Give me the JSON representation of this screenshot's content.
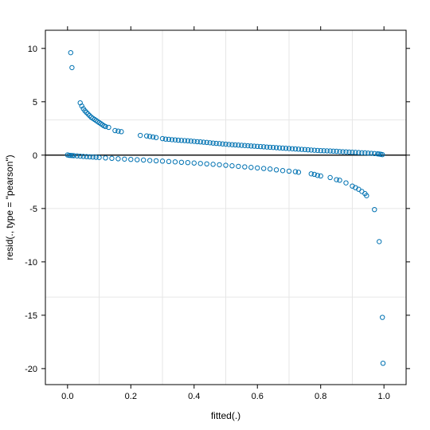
{
  "chart_data": {
    "type": "scatter",
    "title": "",
    "xlabel": "fitted(.)",
    "ylabel": "resid(., type = \"pearson\")",
    "xlim": [
      -0.07,
      1.07
    ],
    "ylim": [
      -21.5,
      11.7
    ],
    "x_ticks": [
      0.0,
      0.2,
      0.4,
      0.6,
      0.8,
      1.0
    ],
    "x_tick_labels": [
      "0.0",
      "0.2",
      "0.4",
      "0.6",
      "0.8",
      "1.0"
    ],
    "y_ticks": [
      10,
      5,
      0,
      -5,
      -10,
      -15,
      -20
    ],
    "y_tick_labels": [
      "10",
      "5",
      "0",
      "-5",
      "-10",
      "-15",
      "-20"
    ],
    "grid": true,
    "reference_lines": {
      "horizontal": [
        0
      ],
      "vertical": []
    },
    "marker": "open-circle",
    "colors": {
      "points": "#0072b2",
      "grid": "#e6e6e6",
      "refline": "#000000",
      "frame": "#000000"
    },
    "series": [
      {
        "points": [
          [
            0.01,
            9.6
          ],
          [
            0.014,
            8.2
          ],
          [
            0.04,
            4.9
          ],
          [
            0.045,
            4.6
          ],
          [
            0.05,
            4.35
          ],
          [
            0.055,
            4.15
          ],
          [
            0.06,
            4.0
          ],
          [
            0.065,
            3.85
          ],
          [
            0.07,
            3.7
          ],
          [
            0.075,
            3.55
          ],
          [
            0.08,
            3.45
          ],
          [
            0.085,
            3.35
          ],
          [
            0.09,
            3.25
          ],
          [
            0.095,
            3.15
          ],
          [
            0.1,
            3.05
          ],
          [
            0.105,
            2.95
          ],
          [
            0.11,
            2.85
          ],
          [
            0.115,
            2.75
          ],
          [
            0.12,
            2.68
          ],
          [
            0.13,
            2.6
          ],
          [
            0.15,
            2.3
          ],
          [
            0.16,
            2.25
          ],
          [
            0.17,
            2.2
          ],
          [
            0.23,
            1.85
          ],
          [
            0.25,
            1.8
          ],
          [
            0.26,
            1.75
          ],
          [
            0.27,
            1.7
          ],
          [
            0.28,
            1.65
          ],
          [
            0.3,
            1.55
          ],
          [
            0.31,
            1.5
          ],
          [
            0.32,
            1.48
          ],
          [
            0.33,
            1.45
          ],
          [
            0.34,
            1.43
          ],
          [
            0.35,
            1.4
          ],
          [
            0.36,
            1.38
          ],
          [
            0.37,
            1.36
          ],
          [
            0.38,
            1.34
          ],
          [
            0.39,
            1.31
          ],
          [
            0.4,
            1.29
          ],
          [
            0.41,
            1.26
          ],
          [
            0.42,
            1.24
          ],
          [
            0.43,
            1.21
          ],
          [
            0.44,
            1.19
          ],
          [
            0.45,
            1.16
          ],
          [
            0.46,
            1.13
          ],
          [
            0.47,
            1.1
          ],
          [
            0.48,
            1.08
          ],
          [
            0.49,
            1.05
          ],
          [
            0.5,
            1.03
          ],
          [
            0.51,
            1.0
          ],
          [
            0.52,
            0.98
          ],
          [
            0.53,
            0.96
          ],
          [
            0.54,
            0.94
          ],
          [
            0.55,
            0.92
          ],
          [
            0.56,
            0.9
          ],
          [
            0.57,
            0.88
          ],
          [
            0.58,
            0.86
          ],
          [
            0.59,
            0.84
          ],
          [
            0.6,
            0.82
          ],
          [
            0.61,
            0.8
          ],
          [
            0.62,
            0.78
          ],
          [
            0.63,
            0.76
          ],
          [
            0.64,
            0.74
          ],
          [
            0.65,
            0.72
          ],
          [
            0.66,
            0.7
          ],
          [
            0.67,
            0.68
          ],
          [
            0.68,
            0.66
          ],
          [
            0.69,
            0.64
          ],
          [
            0.7,
            0.62
          ],
          [
            0.71,
            0.6
          ],
          [
            0.72,
            0.58
          ],
          [
            0.73,
            0.56
          ],
          [
            0.74,
            0.54
          ],
          [
            0.75,
            0.52
          ],
          [
            0.76,
            0.5
          ],
          [
            0.77,
            0.48
          ],
          [
            0.78,
            0.46
          ],
          [
            0.79,
            0.44
          ],
          [
            0.8,
            0.42
          ],
          [
            0.81,
            0.41
          ],
          [
            0.82,
            0.4
          ],
          [
            0.83,
            0.39
          ],
          [
            0.84,
            0.37
          ],
          [
            0.85,
            0.36
          ],
          [
            0.86,
            0.34
          ],
          [
            0.87,
            0.32
          ],
          [
            0.88,
            0.31
          ],
          [
            0.89,
            0.29
          ],
          [
            0.9,
            0.27
          ],
          [
            0.91,
            0.26
          ],
          [
            0.92,
            0.24
          ],
          [
            0.93,
            0.22
          ],
          [
            0.94,
            0.21
          ],
          [
            0.95,
            0.19
          ],
          [
            0.96,
            0.17
          ],
          [
            0.97,
            0.15
          ],
          [
            0.98,
            0.12
          ],
          [
            0.985,
            0.1
          ],
          [
            0.99,
            0.08
          ],
          [
            0.995,
            0.05
          ],
          [
            0.0,
            0.02
          ],
          [
            0.005,
            -0.02
          ],
          [
            0.01,
            -0.03
          ],
          [
            0.015,
            -0.04
          ],
          [
            0.02,
            -0.05
          ],
          [
            0.03,
            -0.07
          ],
          [
            0.04,
            -0.1
          ],
          [
            0.05,
            -0.12
          ],
          [
            0.06,
            -0.14
          ],
          [
            0.07,
            -0.16
          ],
          [
            0.08,
            -0.18
          ],
          [
            0.09,
            -0.2
          ],
          [
            0.1,
            -0.22
          ],
          [
            0.12,
            -0.26
          ],
          [
            0.14,
            -0.3
          ],
          [
            0.16,
            -0.34
          ],
          [
            0.18,
            -0.37
          ],
          [
            0.2,
            -0.4
          ],
          [
            0.22,
            -0.43
          ],
          [
            0.24,
            -0.46
          ],
          [
            0.26,
            -0.5
          ],
          [
            0.28,
            -0.53
          ],
          [
            0.3,
            -0.56
          ],
          [
            0.32,
            -0.6
          ],
          [
            0.34,
            -0.63
          ],
          [
            0.36,
            -0.67
          ],
          [
            0.38,
            -0.7
          ],
          [
            0.4,
            -0.74
          ],
          [
            0.42,
            -0.78
          ],
          [
            0.44,
            -0.82
          ],
          [
            0.46,
            -0.86
          ],
          [
            0.48,
            -0.9
          ],
          [
            0.5,
            -0.95
          ],
          [
            0.52,
            -1.0
          ],
          [
            0.54,
            -1.05
          ],
          [
            0.56,
            -1.1
          ],
          [
            0.58,
            -1.15
          ],
          [
            0.6,
            -1.2
          ],
          [
            0.62,
            -1.25
          ],
          [
            0.64,
            -1.3
          ],
          [
            0.66,
            -1.38
          ],
          [
            0.68,
            -1.45
          ],
          [
            0.7,
            -1.5
          ],
          [
            0.72,
            -1.55
          ],
          [
            0.73,
            -1.6
          ],
          [
            0.77,
            -1.75
          ],
          [
            0.78,
            -1.8
          ],
          [
            0.79,
            -1.9
          ],
          [
            0.8,
            -1.95
          ],
          [
            0.83,
            -2.1
          ],
          [
            0.85,
            -2.3
          ],
          [
            0.86,
            -2.35
          ],
          [
            0.88,
            -2.6
          ],
          [
            0.9,
            -2.9
          ],
          [
            0.91,
            -3.05
          ],
          [
            0.92,
            -3.2
          ],
          [
            0.93,
            -3.4
          ],
          [
            0.94,
            -3.6
          ],
          [
            0.945,
            -3.8
          ],
          [
            0.97,
            -5.1
          ],
          [
            0.985,
            -8.1
          ],
          [
            0.995,
            -15.2
          ],
          [
            0.997,
            -19.5
          ]
        ]
      }
    ]
  }
}
